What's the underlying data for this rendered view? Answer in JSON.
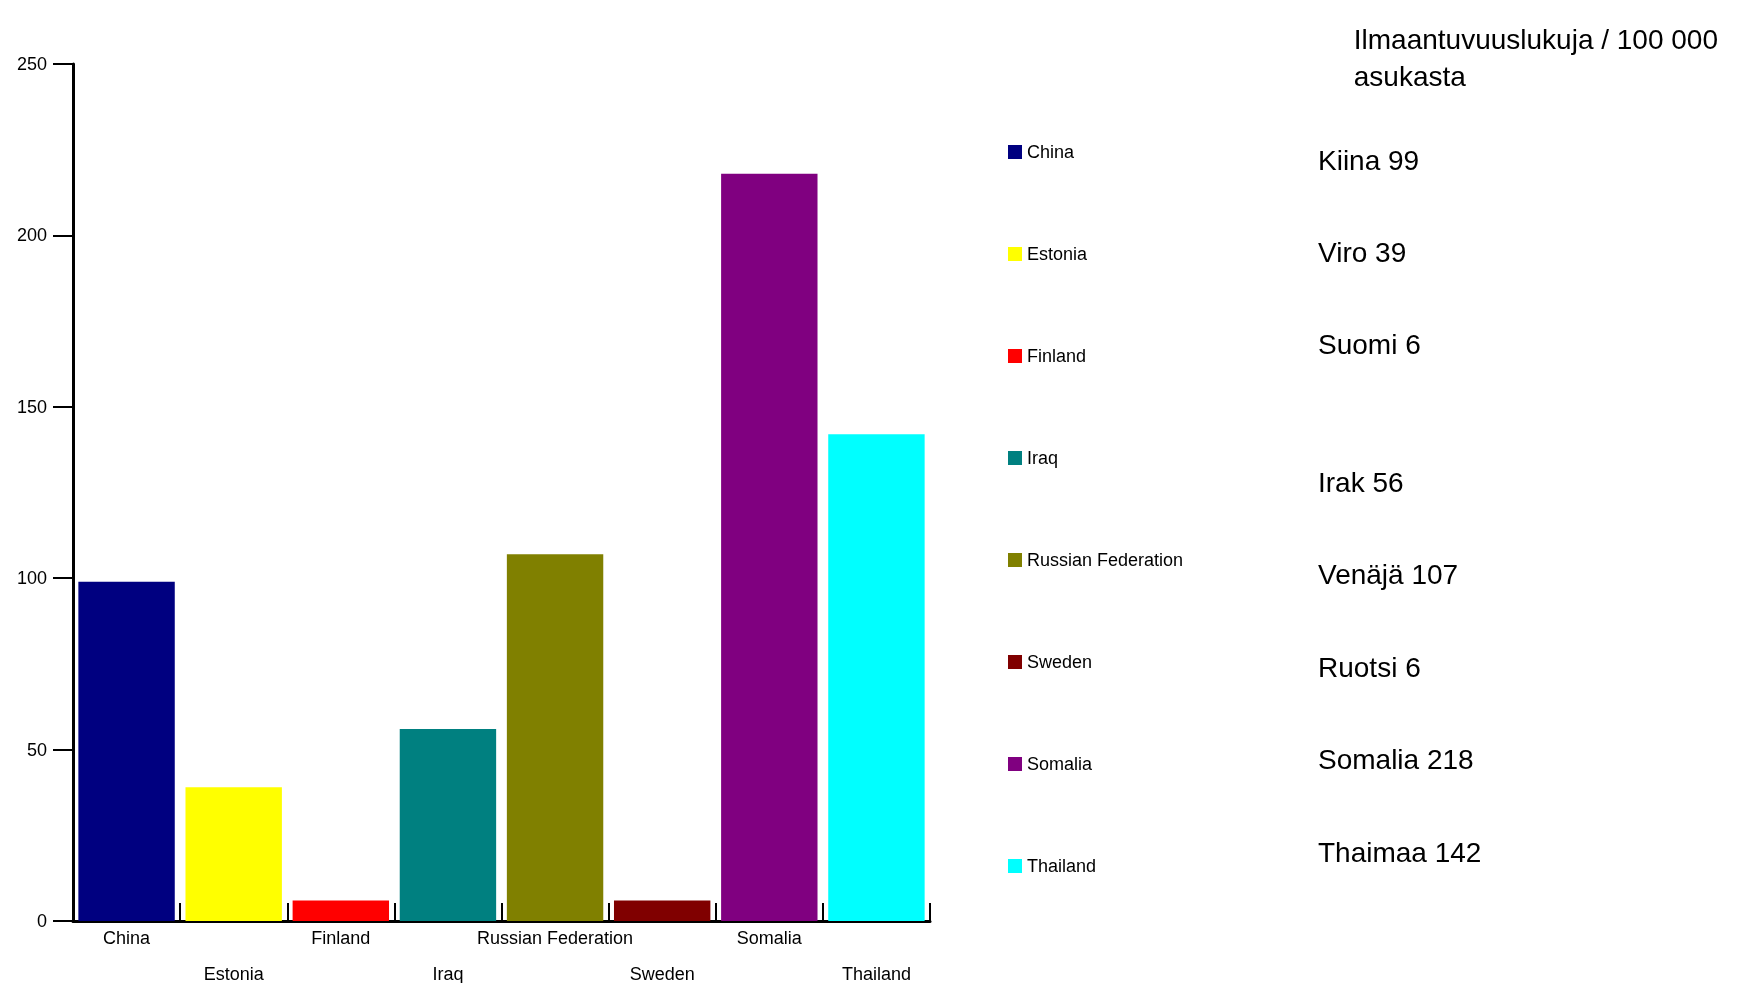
{
  "chart_data": {
    "type": "bar",
    "title": "Ilmaantuvuuslukuja / 100 000\nasukasta",
    "categories": [
      "China",
      "Estonia",
      "Finland",
      "Iraq",
      "Russian Federation",
      "Sweden",
      "Somalia",
      "Thailand"
    ],
    "series": [
      {
        "name": "China",
        "color": "#000080",
        "values": [
          99,
          null,
          null,
          null,
          null,
          null,
          null,
          null
        ]
      },
      {
        "name": "Estonia",
        "color": "#ffff00",
        "values": [
          null,
          39,
          null,
          null,
          null,
          null,
          null,
          null
        ]
      },
      {
        "name": "Finland",
        "color": "#ff0000",
        "values": [
          null,
          null,
          6,
          null,
          null,
          null,
          null,
          null
        ]
      },
      {
        "name": "Iraq",
        "color": "#008080",
        "values": [
          null,
          null,
          null,
          56,
          null,
          null,
          null,
          null
        ]
      },
      {
        "name": "Russian Federation",
        "color": "#808000",
        "values": [
          null,
          null,
          null,
          null,
          107,
          null,
          null,
          null
        ]
      },
      {
        "name": "Sweden",
        "color": "#800000",
        "values": [
          null,
          null,
          null,
          null,
          null,
          6,
          null,
          null
        ]
      },
      {
        "name": "Somalia",
        "color": "#800080",
        "values": [
          null,
          null,
          null,
          null,
          null,
          null,
          218,
          null
        ]
      },
      {
        "name": "Thailand",
        "color": "#00ffff",
        "values": [
          null,
          null,
          null,
          null,
          null,
          null,
          null,
          142
        ]
      }
    ],
    "ylim": [
      0,
      250
    ],
    "yticks": [
      0,
      50,
      100,
      150,
      200,
      250
    ],
    "grid": false,
    "legend": "right",
    "annotations": [
      "Kiina 99",
      "Viro 39",
      "Suomi 6",
      "Irak 56",
      "Venäjä 107",
      "Ruotsi 6",
      "Somalia 218",
      "Thaimaa 142"
    ]
  }
}
